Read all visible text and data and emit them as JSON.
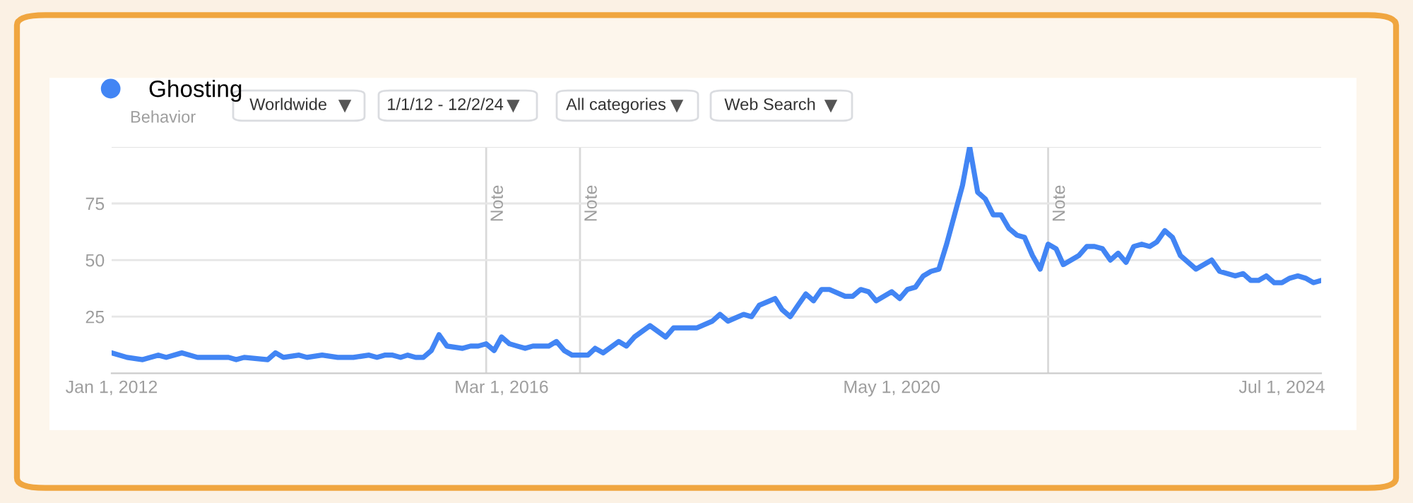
{
  "chart_data": {
    "type": "line",
    "subtitle": "Behavior",
    "annotations": [
      "Worldwide",
      "1/1/12 - 12/2/24",
      "All categories",
      "Web Search"
    ],
    "x": [
      "2012-01",
      "2012-03",
      "2012-05",
      "2012-07",
      "2012-08",
      "2012-10",
      "2012-12",
      "2013-04",
      "2013-05",
      "2013-06",
      "2013-09",
      "2013-10",
      "2013-11",
      "2014-01",
      "2014-02",
      "2014-04",
      "2014-06",
      "2014-08",
      "2014-10",
      "2014-11",
      "2014-12",
      "2015-01",
      "2015-02",
      "2015-03",
      "2015-04",
      "2015-05",
      "2015-06",
      "2015-07",
      "2015-08",
      "2015-10",
      "2015-11",
      "2015-12",
      "2016-01",
      "2016-02",
      "2016-03",
      "2016-04",
      "2016-05",
      "2016-06",
      "2016-07",
      "2016-09",
      "2016-10",
      "2016-11",
      "2016-12",
      "2017-02",
      "2017-03",
      "2017-04",
      "2017-06",
      "2017-07",
      "2017-08",
      "2017-10",
      "2017-12",
      "2018-01",
      "2018-04",
      "2018-06",
      "2018-07",
      "2018-08",
      "2018-10",
      "2018-11",
      "2018-12",
      "2019-02",
      "2019-03",
      "2019-04",
      "2019-05",
      "2019-06",
      "2019-07",
      "2019-08",
      "2019-09",
      "2019-11",
      "2019-12",
      "2020-01",
      "2020-02",
      "2020-03",
      "2020-05",
      "2020-06",
      "2020-07",
      "2020-08",
      "2020-09",
      "2020-10",
      "2020-11",
      "2020-12",
      "2021-02",
      "2021-03",
      "2021-04",
      "2021-05",
      "2021-06",
      "2021-07",
      "2021-08",
      "2021-09",
      "2021-10",
      "2021-11",
      "2021-12",
      "2022-01",
      "2022-02",
      "2022-03",
      "2022-05",
      "2022-06",
      "2022-07",
      "2022-08",
      "2022-09",
      "2022-10",
      "2022-11",
      "2022-12",
      "2023-01",
      "2023-02",
      "2023-03",
      "2023-04",
      "2023-05",
      "2023-06",
      "2023-08",
      "2023-10",
      "2023-11",
      "2024-01",
      "2024-02",
      "2024-03",
      "2024-04",
      "2024-05",
      "2024-06",
      "2024-07",
      "2024-08",
      "2024-09",
      "2024-10",
      "2024-11",
      "2024-12"
    ],
    "series": [
      {
        "name": "Ghosting",
        "color": "#4285f4",
        "values": [
          9,
          7,
          6,
          8,
          7,
          9,
          7,
          7,
          6,
          7,
          6,
          9,
          7,
          8,
          7,
          8,
          7,
          7,
          8,
          7,
          8,
          8,
          7,
          8,
          7,
          7,
          10,
          17,
          12,
          11,
          12,
          12,
          13,
          10,
          16,
          13,
          12,
          11,
          12,
          12,
          14,
          10,
          8,
          8,
          11,
          9,
          14,
          12,
          16,
          21,
          16,
          20,
          20,
          23,
          26,
          23,
          26,
          25,
          30,
          33,
          28,
          25,
          30,
          35,
          32,
          37,
          37,
          34,
          34,
          37,
          36,
          32,
          36,
          33,
          37,
          38,
          43,
          45,
          46,
          57,
          83,
          100,
          80,
          77,
          70,
          70,
          64,
          61,
          60,
          52,
          46,
          57,
          55,
          48,
          52,
          56,
          56,
          55,
          50,
          53,
          49,
          56,
          57,
          56,
          58,
          63,
          60,
          52,
          46,
          50,
          45,
          43,
          44,
          41,
          41,
          43,
          40,
          40,
          42,
          43,
          42,
          40,
          41
        ]
      }
    ],
    "xlim": [
      "2012-01-01",
      "2024-12-01"
    ],
    "xticks": [
      {
        "value": "2012-01-01",
        "label": "Jan 1, 2012"
      },
      {
        "value": "2016-03-01",
        "label": "Mar 1, 2016"
      },
      {
        "value": "2020-05-01",
        "label": "May 1, 2020"
      },
      {
        "value": "2024-07-01",
        "label": "Jul 1, 2024"
      }
    ],
    "ylim": [
      0,
      100
    ],
    "yticks": [
      25,
      50,
      75,
      {
        "value": 100,
        "label": null
      }
    ],
    "ref_lines": [
      {
        "axis": "x",
        "value": "2016-01-01",
        "label": "Note",
        "color": "#d9d9d9"
      },
      {
        "axis": "x",
        "value": "2017-01-01",
        "label": "Note",
        "color": "#d9d9d9"
      },
      {
        "axis": "x",
        "value": "2022-01-01",
        "label": "Note",
        "color": "#d9d9d9"
      }
    ],
    "grid": "y",
    "legend": "top left",
    "marker": "none",
    "line_style": "solid"
  }
}
